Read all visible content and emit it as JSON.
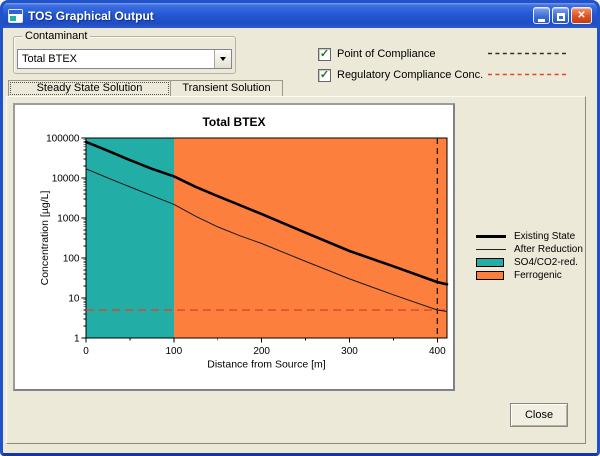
{
  "window": {
    "title": "TOS Graphical Output",
    "buttons": {
      "minimize": "minimize",
      "maximize": "maximize",
      "close": "close"
    }
  },
  "colors": {
    "dialog_bg": "#ECE9D8",
    "titlebar_blue": "#2458D4",
    "sulfate_teal": "#22ADA6",
    "ferrogenic_orange": "#FC7F3E",
    "regulatory_red": "#E04428",
    "poc_dash_black": "#333333"
  },
  "contaminant": {
    "group_label": "Contaminant",
    "selected": "Total BTEX"
  },
  "options": [
    {
      "label": "Point of Compliance",
      "checked": true,
      "line_color": "#333333",
      "line_style": "dashed"
    },
    {
      "label": "Regulatory Compliance Conc.",
      "checked": true,
      "line_color": "#E04428",
      "line_style": "dashed"
    }
  ],
  "tabs": [
    {
      "label": "Steady State Solution",
      "active": true
    },
    {
      "label": "Transient Solution",
      "active": false
    }
  ],
  "close_button": "Close",
  "chart_data": {
    "type": "line",
    "title": "Total BTEX",
    "xlabel": "Distance from Source [m]",
    "ylabel": "Concentration [µg/L]",
    "x_scale": "linear",
    "y_scale": "log",
    "xlim": [
      0,
      411
    ],
    "ylim": [
      1,
      100000
    ],
    "x_ticks": [
      0,
      100,
      200,
      300,
      400
    ],
    "x_minor_ticks": [
      50,
      150,
      250,
      350
    ],
    "y_ticks": [
      1,
      10,
      100,
      1000,
      10000,
      100000
    ],
    "grid": false,
    "zones": [
      {
        "name": "SO4/CO2-red.",
        "x0": 0,
        "x1": 100,
        "color": "#22ADA6"
      },
      {
        "name": "Ferrogenic",
        "x0": 100,
        "x1": 411,
        "color": "#FC7F3E"
      }
    ],
    "series": [
      {
        "name": "Existing State",
        "color": "#000000",
        "width": 2.6,
        "x": [
          0,
          25,
          50,
          75,
          100,
          125,
          150,
          175,
          200,
          250,
          300,
          350,
          400,
          411
        ],
        "y": [
          80000,
          48000,
          28000,
          17000,
          11000,
          6000,
          3500,
          2100,
          1250,
          430,
          150,
          62,
          25,
          22
        ]
      },
      {
        "name": "After Reduction",
        "color": "#1a1a1a",
        "width": 1,
        "x": [
          0,
          25,
          50,
          75,
          100,
          125,
          150,
          175,
          200,
          250,
          300,
          350,
          400,
          411
        ],
        "y": [
          17000,
          10000,
          6000,
          3600,
          2200,
          1100,
          600,
          360,
          230,
          82,
          30,
          12,
          5,
          4.6
        ]
      }
    ],
    "reference_lines": [
      {
        "name": "Point of Compliance",
        "orientation": "vertical",
        "value": 400,
        "color": "#1a1a1a",
        "dash": "6,4"
      },
      {
        "name": "Regulatory Compliance Conc.",
        "orientation": "horizontal",
        "value": 5,
        "color": "#E04428",
        "dash": "8,5"
      }
    ],
    "legend": {
      "position": "right-of-plot",
      "entries": [
        "Existing State",
        "After Reduction",
        "SO4/CO2-red.",
        "Ferrogenic"
      ]
    }
  }
}
